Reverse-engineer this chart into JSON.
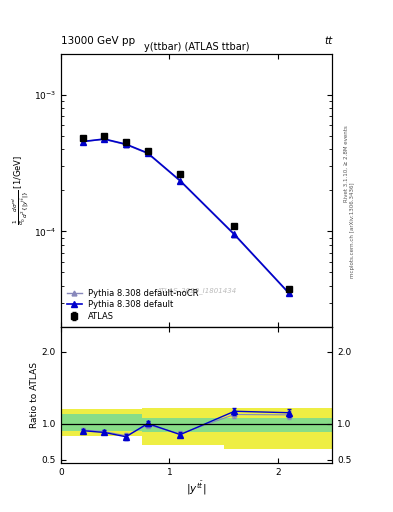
{
  "title_main": "y(ttbar) (ATLAS ttbar)",
  "header_left": "13000 GeV pp",
  "header_right": "tt",
  "watermark": "ATLAS_2020_I1801434",
  "right_label_top": "Rivet 3.1.10, ≥ 2.8M events",
  "right_label_bot": "mcplots.cern.ch [arXiv:1306.3436]",
  "atlas_x": [
    0.2,
    0.4,
    0.6,
    0.8,
    1.1,
    1.6,
    2.1
  ],
  "atlas_y": [
    0.00048,
    0.0005,
    0.000455,
    0.00039,
    0.000265,
    0.00011,
    3.8e-05
  ],
  "atlas_yerr": [
    3e-06,
    3e-06,
    3e-06,
    3e-06,
    4e-06,
    2e-06,
    2e-07
  ],
  "py_def_x": [
    0.2,
    0.4,
    0.6,
    0.8,
    1.1,
    1.6,
    2.1
  ],
  "py_def_y": [
    0.000455,
    0.000475,
    0.000435,
    0.000375,
    0.000235,
    9.5e-05,
    3.55e-05
  ],
  "py_nocr_x": [
    0.2,
    0.4,
    0.6,
    0.8,
    1.1,
    1.6,
    2.1
  ],
  "py_nocr_y": [
    0.000455,
    0.000472,
    0.000432,
    0.000372,
    0.000233,
    9.4e-05,
    3.52e-05
  ],
  "ratio_def_x": [
    0.2,
    0.4,
    0.6,
    0.8,
    1.1,
    1.6,
    2.1
  ],
  "ratio_def_y": [
    0.905,
    0.88,
    0.82,
    1.005,
    0.85,
    1.175,
    1.155
  ],
  "ratio_def_yerr": [
    0.028,
    0.028,
    0.038,
    0.038,
    0.038,
    0.048,
    0.058
  ],
  "ratio_nocr_x": [
    0.2,
    0.4,
    0.6,
    0.8,
    1.1,
    1.6,
    2.1
  ],
  "ratio_nocr_y": [
    0.915,
    0.892,
    0.835,
    0.985,
    0.862,
    1.13,
    1.125
  ],
  "ratio_nocr_yerr": [
    0.028,
    0.028,
    0.038,
    0.038,
    0.038,
    0.048,
    0.058
  ],
  "band_edges": [
    0.0,
    0.5,
    0.75,
    1.5,
    2.5
  ],
  "band_green_lo": [
    0.9,
    0.9,
    0.88,
    0.88,
    0.88
  ],
  "band_green_hi": [
    1.13,
    1.13,
    1.08,
    1.08,
    1.13
  ],
  "band_yellow_lo": [
    0.83,
    0.83,
    0.7,
    0.65,
    0.65
  ],
  "band_yellow_hi": [
    1.2,
    1.2,
    1.22,
    1.22,
    1.38
  ],
  "color_atlas": "#000000",
  "color_py_def": "#0000cc",
  "color_py_nocr": "#8888bb",
  "color_green": "#88dd88",
  "color_yellow": "#eeee44",
  "ylim_main": [
    2e-05,
    0.002
  ],
  "ylim_ratio": [
    0.45,
    2.35
  ],
  "xlim": [
    0.0,
    2.5
  ],
  "yticks_ratio": [
    0.5,
    1.0,
    2.0
  ]
}
